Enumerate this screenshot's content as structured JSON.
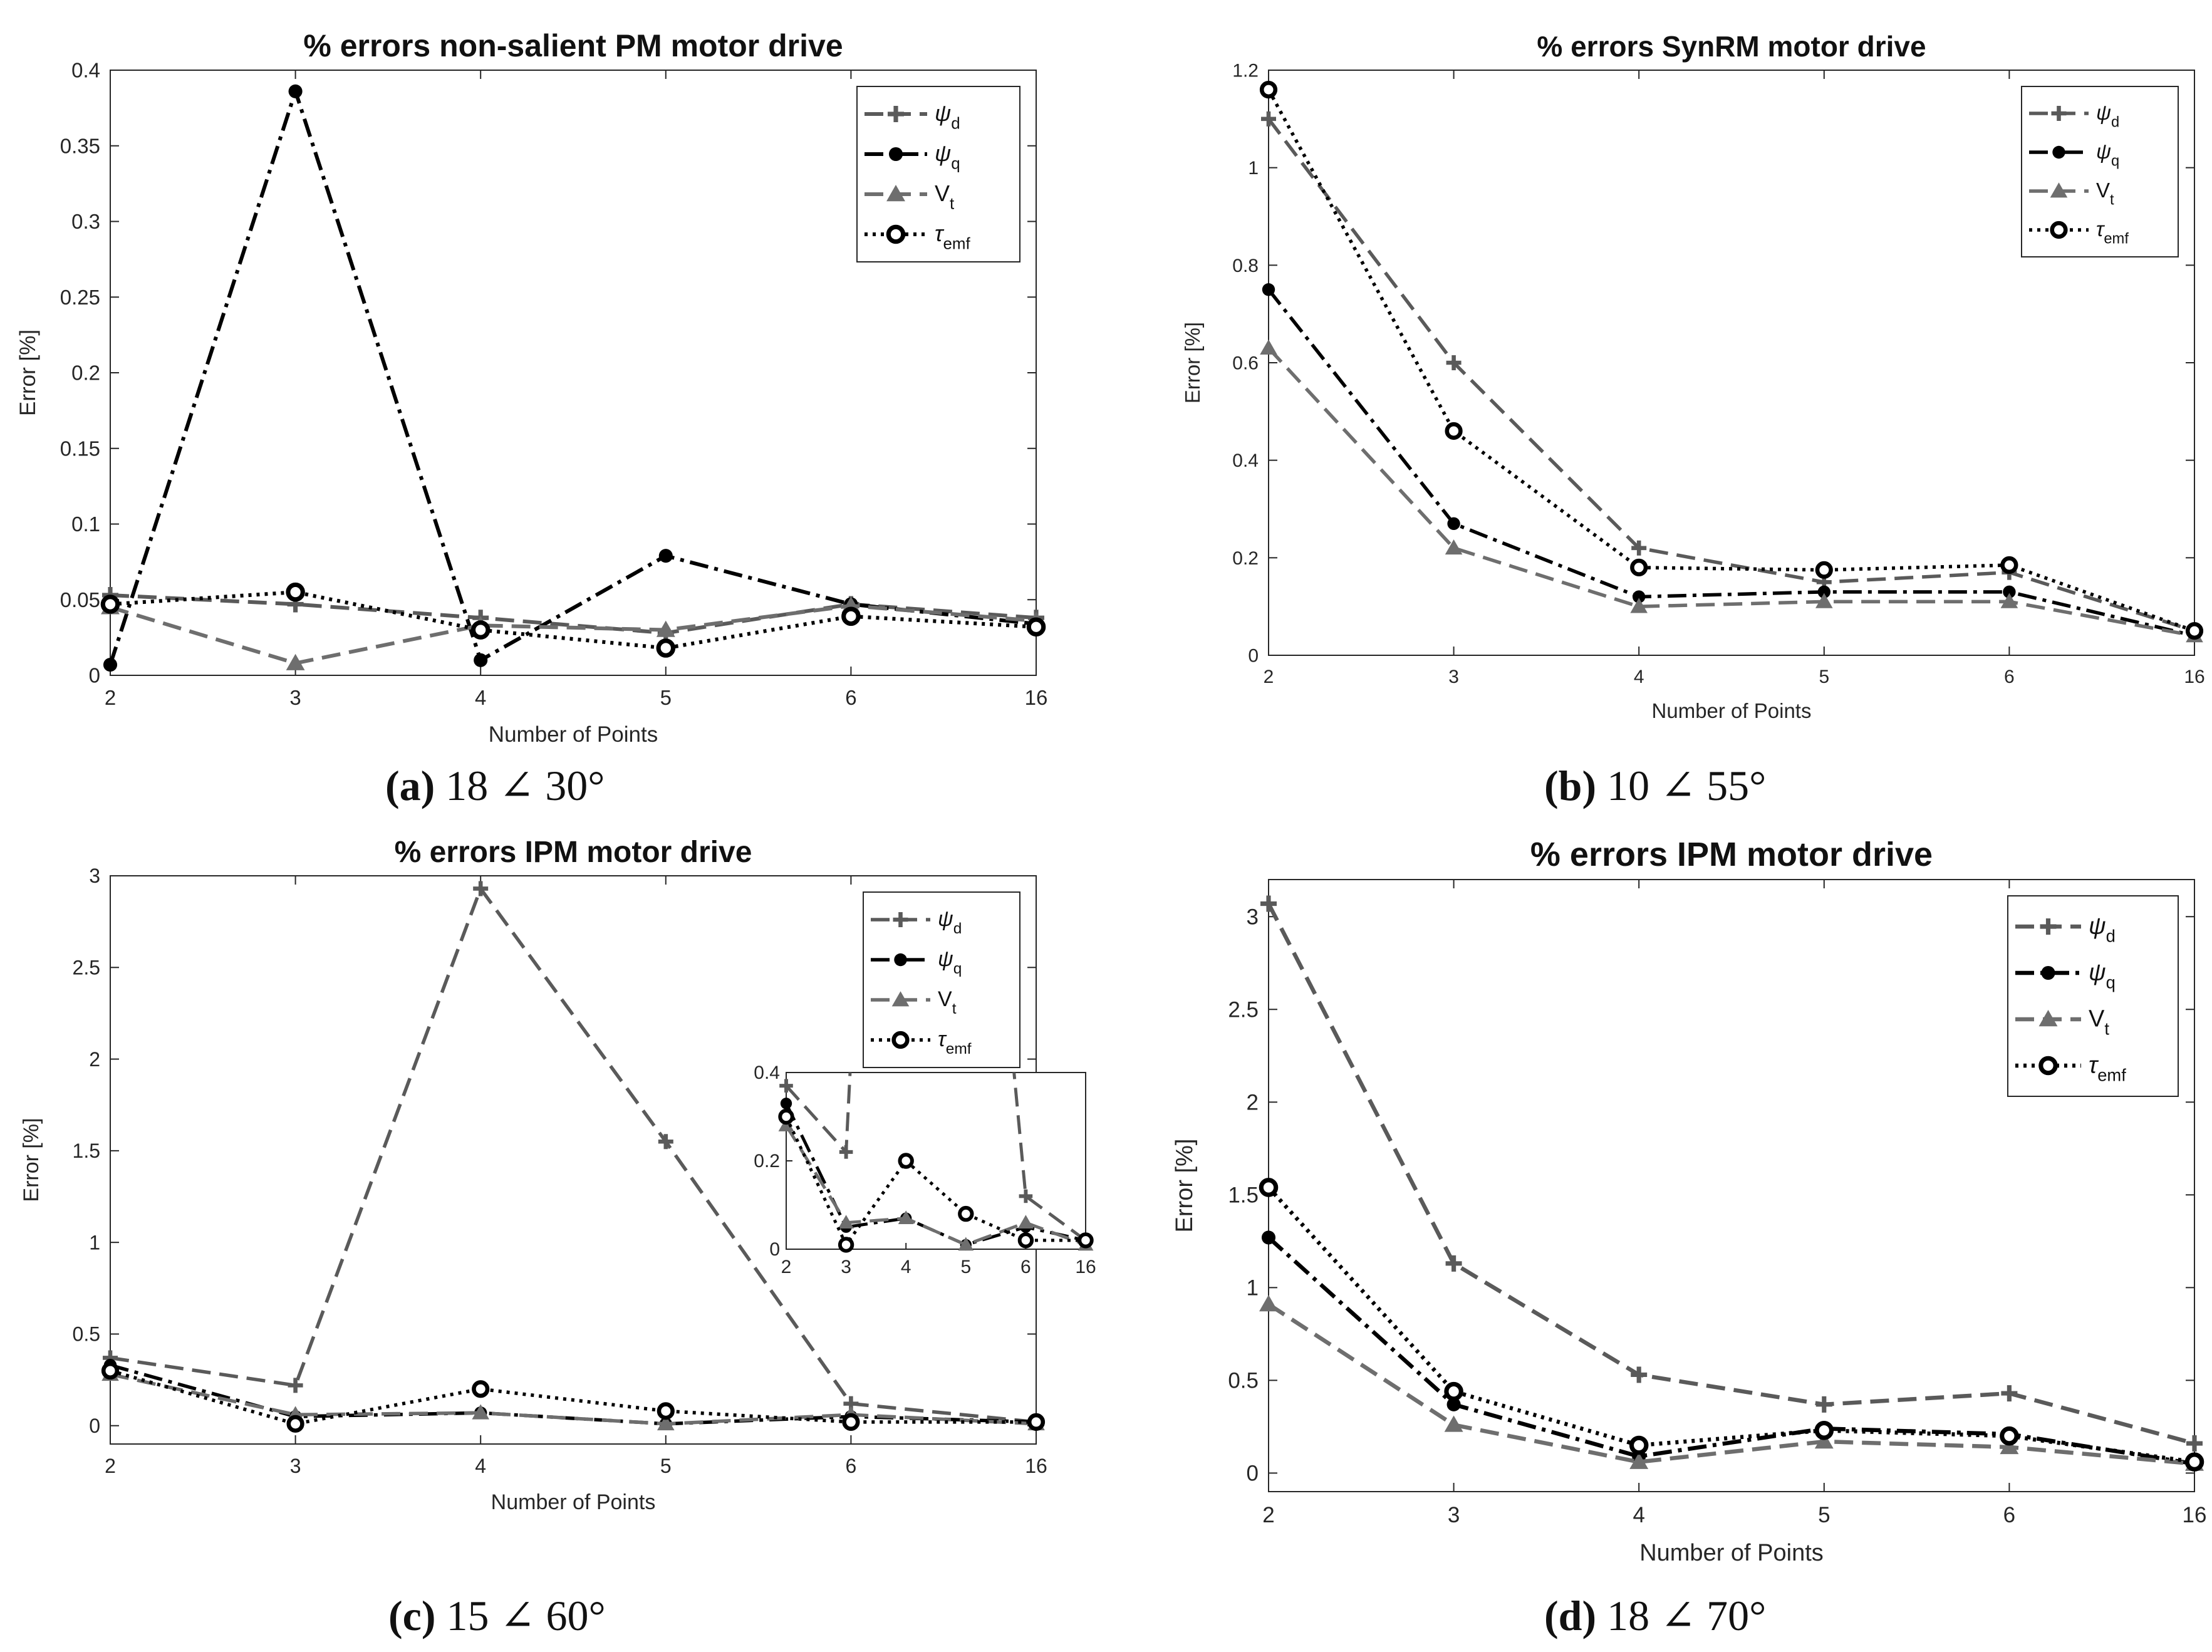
{
  "chart_data": [
    {
      "id": "a",
      "type": "line",
      "title": "% errors non-salient PM motor drive",
      "xlabel": "Number of Points",
      "ylabel": "Error [%]",
      "categories": [
        "2",
        "3",
        "4",
        "5",
        "6",
        "16"
      ],
      "ylim": [
        0,
        0.4
      ],
      "yticks": [
        0,
        0.05,
        0.1,
        0.15,
        0.2,
        0.25,
        0.3,
        0.35,
        0.4
      ],
      "ytick_labels": [
        "0",
        "0.05",
        "0.1",
        "0.15",
        "0.2",
        "0.25",
        "0.3",
        "0.35",
        "0.4"
      ],
      "legend_position": "top-right",
      "series": [
        {
          "name": "ψ",
          "sub": "d",
          "values": [
            0.053,
            0.047,
            0.038,
            0.028,
            0.047,
            0.038
          ]
        },
        {
          "name": "ψ",
          "sub": "q",
          "values": [
            0.007,
            0.386,
            0.01,
            0.079,
            0.047,
            0.034
          ]
        },
        {
          "name": "V",
          "sub": "t",
          "values": [
            0.045,
            0.008,
            0.033,
            0.03,
            0.046,
            0.036
          ]
        },
        {
          "name": "τ",
          "sub": "emf",
          "values": [
            0.047,
            0.055,
            0.03,
            0.018,
            0.039,
            0.032
          ]
        }
      ],
      "caption": {
        "label": "(a)",
        "text": " 18 ∠ 30°"
      }
    },
    {
      "id": "b",
      "type": "line",
      "title": "% errors SynRM motor drive",
      "xlabel": "Number of Points",
      "ylabel": "Error [%]",
      "categories": [
        "2",
        "3",
        "4",
        "5",
        "6",
        "16"
      ],
      "ylim": [
        0,
        1.2
      ],
      "yticks": [
        0,
        0.2,
        0.4,
        0.6,
        0.8,
        1,
        1.2
      ],
      "ytick_labels": [
        "0",
        "0.2",
        "0.4",
        "0.6",
        "0.8",
        "1",
        "1.2"
      ],
      "legend_position": "top-right",
      "series": [
        {
          "name": "ψ",
          "sub": "d",
          "values": [
            1.1,
            0.6,
            0.22,
            0.15,
            0.17,
            0.05
          ]
        },
        {
          "name": "ψ",
          "sub": "q",
          "values": [
            0.75,
            0.27,
            0.12,
            0.13,
            0.13,
            0.04
          ]
        },
        {
          "name": "V",
          "sub": "t",
          "values": [
            0.63,
            0.22,
            0.1,
            0.11,
            0.11,
            0.04
          ]
        },
        {
          "name": "τ",
          "sub": "emf",
          "values": [
            1.16,
            0.46,
            0.18,
            0.175,
            0.185,
            0.05
          ]
        }
      ],
      "caption": {
        "label": "(b)",
        "text": " 10 ∠ 55°"
      }
    },
    {
      "id": "c",
      "type": "line",
      "title": "% errors IPM motor drive",
      "xlabel": "Number of Points",
      "ylabel": "Error [%]",
      "categories": [
        "2",
        "3",
        "4",
        "5",
        "6",
        "16"
      ],
      "ylim": [
        -0.1,
        3
      ],
      "yticks": [
        0,
        0.5,
        1,
        1.5,
        2,
        2.5,
        3
      ],
      "ytick_labels": [
        "0",
        "0.5",
        "1",
        "1.5",
        "2",
        "2.5",
        "3"
      ],
      "legend_position": "top-right",
      "series": [
        {
          "name": "ψ",
          "sub": "d",
          "values": [
            0.37,
            0.22,
            2.93,
            1.55,
            0.12,
            0.02
          ]
        },
        {
          "name": "ψ",
          "sub": "q",
          "values": [
            0.33,
            0.05,
            0.07,
            0.01,
            0.05,
            0.02
          ]
        },
        {
          "name": "V",
          "sub": "t",
          "values": [
            0.28,
            0.06,
            0.07,
            0.01,
            0.06,
            0.01
          ]
        },
        {
          "name": "τ",
          "sub": "emf",
          "values": [
            0.3,
            0.01,
            0.2,
            0.08,
            0.02,
            0.02
          ]
        }
      ],
      "inset": {
        "ylim": [
          0,
          0.4
        ],
        "yticks": [
          0,
          0.2,
          0.4
        ],
        "ytick_labels": [
          "0",
          "0.2",
          "0.4"
        ]
      },
      "caption": {
        "label": "(c)",
        "text": " 15 ∠ 60°"
      }
    },
    {
      "id": "d",
      "type": "line",
      "title": "% errors IPM motor drive",
      "xlabel": "Number of Points",
      "ylabel": "Error [%]",
      "categories": [
        "2",
        "3",
        "4",
        "5",
        "6",
        "16"
      ],
      "ylim": [
        -0.1,
        3.2
      ],
      "yticks": [
        0,
        0.5,
        1,
        1.5,
        2,
        2.5,
        3
      ],
      "ytick_labels": [
        "0",
        "0.5",
        "1",
        "1.5",
        "2",
        "2.5",
        "3"
      ],
      "legend_position": "top-right",
      "series": [
        {
          "name": "ψ",
          "sub": "d",
          "values": [
            3.07,
            1.13,
            0.53,
            0.37,
            0.43,
            0.16
          ]
        },
        {
          "name": "ψ",
          "sub": "q",
          "values": [
            1.27,
            0.37,
            0.09,
            0.24,
            0.21,
            0.05
          ]
        },
        {
          "name": "V",
          "sub": "t",
          "values": [
            0.91,
            0.26,
            0.06,
            0.17,
            0.14,
            0.05
          ]
        },
        {
          "name": "τ",
          "sub": "emf",
          "values": [
            1.54,
            0.44,
            0.15,
            0.23,
            0.2,
            0.06
          ]
        }
      ],
      "caption": {
        "label": "(d)",
        "text": " 18 ∠ 70°"
      }
    }
  ],
  "series_styles": [
    {
      "color": "#5a5a5a",
      "dash": "dashed",
      "marker": "plus"
    },
    {
      "color": "#000000",
      "dash": "dashdot",
      "marker": "filled-circle"
    },
    {
      "color": "#6e6e6e",
      "dash": "dashed",
      "marker": "triangle"
    },
    {
      "color": "#000000",
      "dash": "dotted",
      "marker": "open-circle"
    }
  ]
}
